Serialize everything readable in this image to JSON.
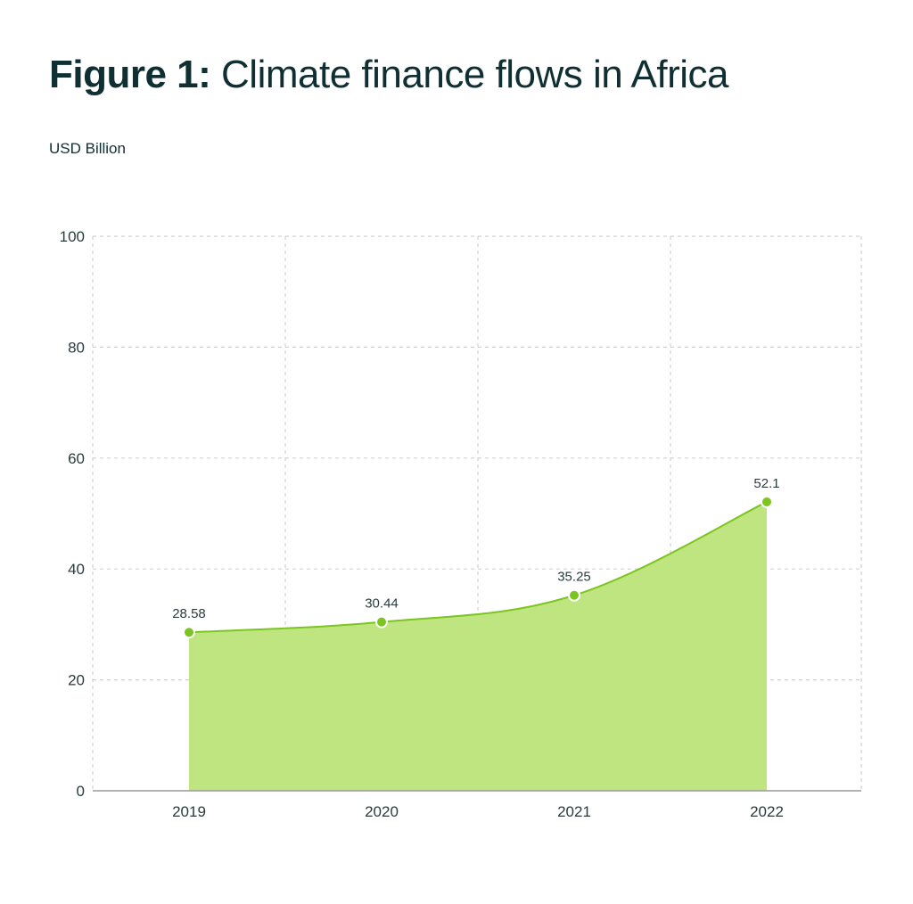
{
  "title": {
    "bold": "Figure 1:",
    "rest": "Climate finance flows in Africa"
  },
  "chart_data": {
    "type": "area",
    "title": "Figure 1: Climate finance flows in Africa",
    "ylabel": "USD Billion",
    "xlabel": "",
    "categories": [
      "2019",
      "2020",
      "2021",
      "2022"
    ],
    "values": [
      28.58,
      30.44,
      35.25,
      52.1
    ],
    "data_labels": [
      "28.58",
      "30.44",
      "35.25",
      "52.1"
    ],
    "ylim": [
      0,
      100
    ],
    "yticks": [
      "0",
      "20",
      "40",
      "60",
      "80",
      "100"
    ],
    "grid": true,
    "legend": "none",
    "colors": {
      "fill": "#bfe581",
      "line": "#7cc520",
      "marker": "#7cc520",
      "grid": "#d0d0d0",
      "axis": "#9a9a9a",
      "text": "#0f2f33"
    }
  }
}
